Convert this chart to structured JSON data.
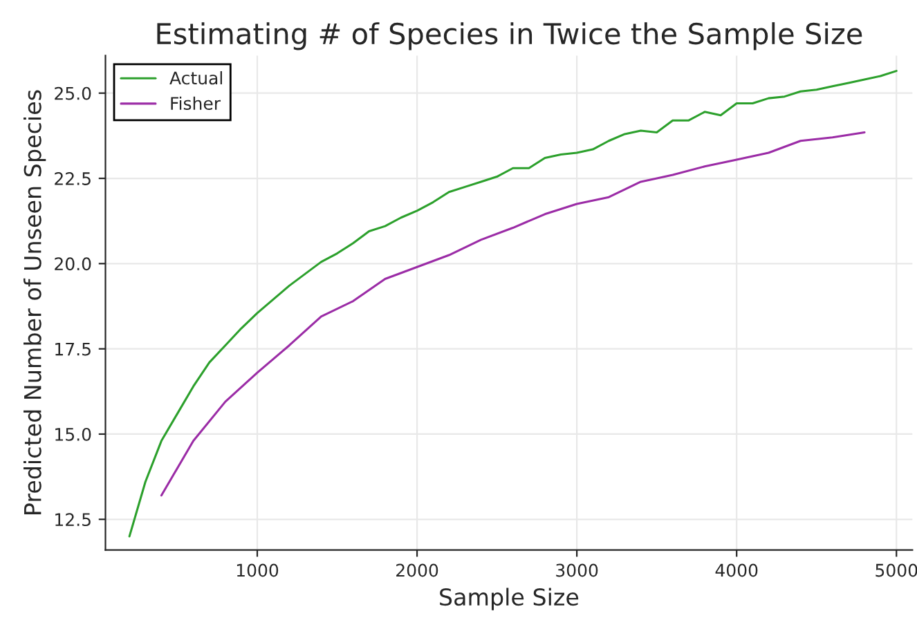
{
  "chart_data": {
    "type": "line",
    "title": "Estimating # of Species in Twice the Sample Size",
    "xlabel": "Sample Size",
    "ylabel": "Predicted Number of Unseen Species",
    "series": [
      {
        "name": "Actual",
        "color": "#2ca02c",
        "x": [
          200,
          300,
          400,
          500,
          600,
          700,
          800,
          900,
          1000,
          1100,
          1200,
          1300,
          1400,
          1500,
          1600,
          1700,
          1800,
          1900,
          2000,
          2100,
          2200,
          2300,
          2400,
          2500,
          2600,
          2700,
          2800,
          2900,
          3000,
          3100,
          3200,
          3300,
          3400,
          3500,
          3600,
          3700,
          3800,
          3900,
          4000,
          4100,
          4200,
          4300,
          4400,
          4500,
          4600,
          4700,
          4800,
          4900,
          5000
        ],
        "values": [
          12.0,
          13.6,
          14.8,
          15.6,
          16.4,
          17.1,
          17.6,
          18.1,
          18.55,
          18.95,
          19.35,
          19.7,
          20.05,
          20.3,
          20.6,
          20.95,
          21.1,
          21.35,
          21.55,
          21.8,
          22.1,
          22.25,
          22.4,
          22.55,
          22.8,
          22.8,
          23.1,
          23.2,
          23.25,
          23.35,
          23.6,
          23.8,
          23.9,
          23.85,
          24.2,
          24.2,
          24.45,
          24.35,
          24.7,
          24.7,
          24.85,
          24.9,
          25.05,
          25.1,
          25.2,
          25.3,
          25.4,
          25.5,
          25.65
        ]
      },
      {
        "name": "Fisher",
        "color": "#9b2ca6",
        "x": [
          400,
          600,
          800,
          1000,
          1200,
          1400,
          1600,
          1800,
          2000,
          2200,
          2400,
          2600,
          2800,
          3000,
          3200,
          3400,
          3600,
          3800,
          4000,
          4200,
          4400,
          4600,
          4800
        ],
        "values": [
          13.2,
          14.8,
          15.95,
          16.8,
          17.6,
          18.45,
          18.9,
          19.55,
          19.9,
          20.25,
          20.7,
          21.05,
          21.45,
          21.75,
          21.95,
          22.4,
          22.6,
          22.85,
          23.05,
          23.25,
          23.6,
          23.7,
          23.85
        ]
      }
    ],
    "xlim": [
      50,
      5100
    ],
    "ylim": [
      11.6,
      26.1
    ],
    "xticks": [
      1000,
      2000,
      3000,
      4000,
      5000
    ],
    "yticks": [
      {
        "value": 12.5,
        "label": "12.5"
      },
      {
        "value": 15,
        "label": "15.0"
      },
      {
        "value": 17.5,
        "label": "17.5"
      },
      {
        "value": 20,
        "label": "20.0"
      },
      {
        "value": 22.5,
        "label": "22.5"
      },
      {
        "value": 25,
        "label": "25.0"
      }
    ],
    "grid": true,
    "legend": "top left"
  }
}
